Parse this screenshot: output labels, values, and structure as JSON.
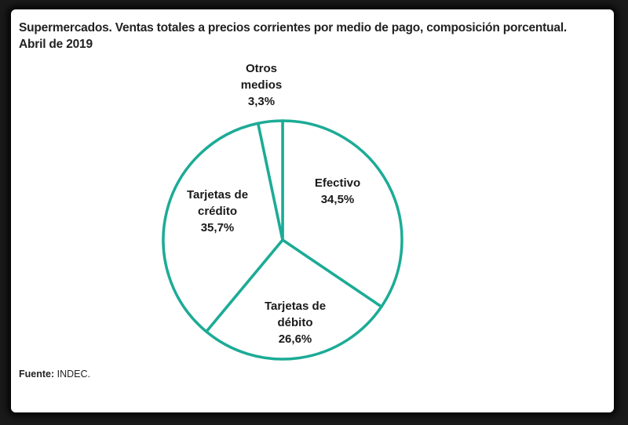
{
  "title_line1": "Supermercados. Ventas totales a precios corrientes por medio de pago, composición porcentual.",
  "title_line2": "Abril de 2019",
  "source_label": "Fuente:",
  "source_value": "INDEC.",
  "colors": {
    "stroke": "#1cab96",
    "fill": "#ffffff",
    "label": "#1a1a1a"
  },
  "chart_data": {
    "type": "pie",
    "title": "Supermercados. Ventas totales a precios corrientes por medio de pago, composición porcentual. Abril de 2019",
    "slices": [
      {
        "label_lines": [
          "Efectivo"
        ],
        "value_text": "34,5%",
        "value": 34.5
      },
      {
        "label_lines": [
          "Tarjetas de",
          "débito"
        ],
        "value_text": "26,6%",
        "value": 26.6
      },
      {
        "label_lines": [
          "Tarjetas de",
          "crédito"
        ],
        "value_text": "35,7%",
        "value": 35.7
      },
      {
        "label_lines": [
          "Otros",
          "medios"
        ],
        "value_text": "3,3%",
        "value": 3.3
      }
    ]
  }
}
